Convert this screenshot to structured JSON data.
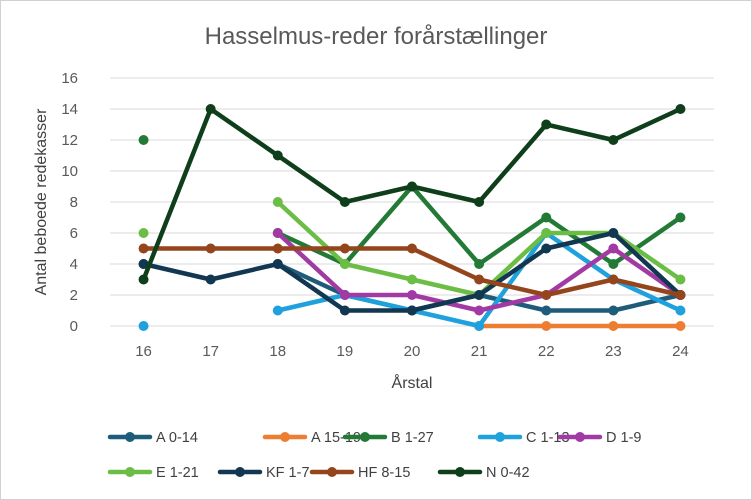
{
  "chart_data": {
    "type": "line",
    "title": "Hasselmus-reder forårstællinger",
    "xlabel": "Årstal",
    "ylabel": "Antal beboede redekasser",
    "x": [
      "16",
      "17",
      "18",
      "19",
      "20",
      "21",
      "22",
      "23",
      "24"
    ],
    "yticks": [
      "0",
      "2",
      "4",
      "6",
      "8",
      "10",
      "12",
      "14",
      "16"
    ],
    "ylim": [
      0,
      16
    ],
    "grid": true,
    "legend_position": "bottom",
    "series": [
      {
        "name": "A 0-14",
        "color": "#1f5c7a",
        "values": [
          4,
          null,
          4,
          2,
          1,
          2,
          1,
          1,
          2
        ]
      },
      {
        "name": "A 15-19",
        "color": "#ed7d31",
        "values": [
          null,
          null,
          null,
          null,
          null,
          0,
          0,
          0,
          0
        ]
      },
      {
        "name": "B 1-27",
        "color": "#237a36",
        "values": [
          12,
          null,
          6,
          4,
          9,
          4,
          7,
          4,
          7
        ]
      },
      {
        "name": "C 1-13",
        "color": "#1ea1dc",
        "values": [
          0,
          null,
          1,
          2,
          1,
          0,
          6,
          3,
          1
        ]
      },
      {
        "name": "D 1-9",
        "color": "#a13aa3",
        "values": [
          null,
          null,
          6,
          2,
          2,
          1,
          2,
          5,
          2
        ]
      },
      {
        "name": "E 1-21",
        "color": "#6cbd45",
        "values": [
          6,
          null,
          8,
          4,
          3,
          2,
          6,
          6,
          3
        ]
      },
      {
        "name": "KF 1-7",
        "color": "#123750",
        "values": [
          4,
          3,
          4,
          1,
          1,
          2,
          5,
          6,
          2
        ]
      },
      {
        "name": "HF 8-15",
        "color": "#94451c",
        "values": [
          5,
          5,
          5,
          5,
          5,
          3,
          2,
          3,
          2
        ]
      },
      {
        "name": "N 0-42",
        "color": "#0f3e1b",
        "values": [
          3,
          14,
          11,
          8,
          9,
          8,
          13,
          12,
          14
        ]
      }
    ]
  }
}
